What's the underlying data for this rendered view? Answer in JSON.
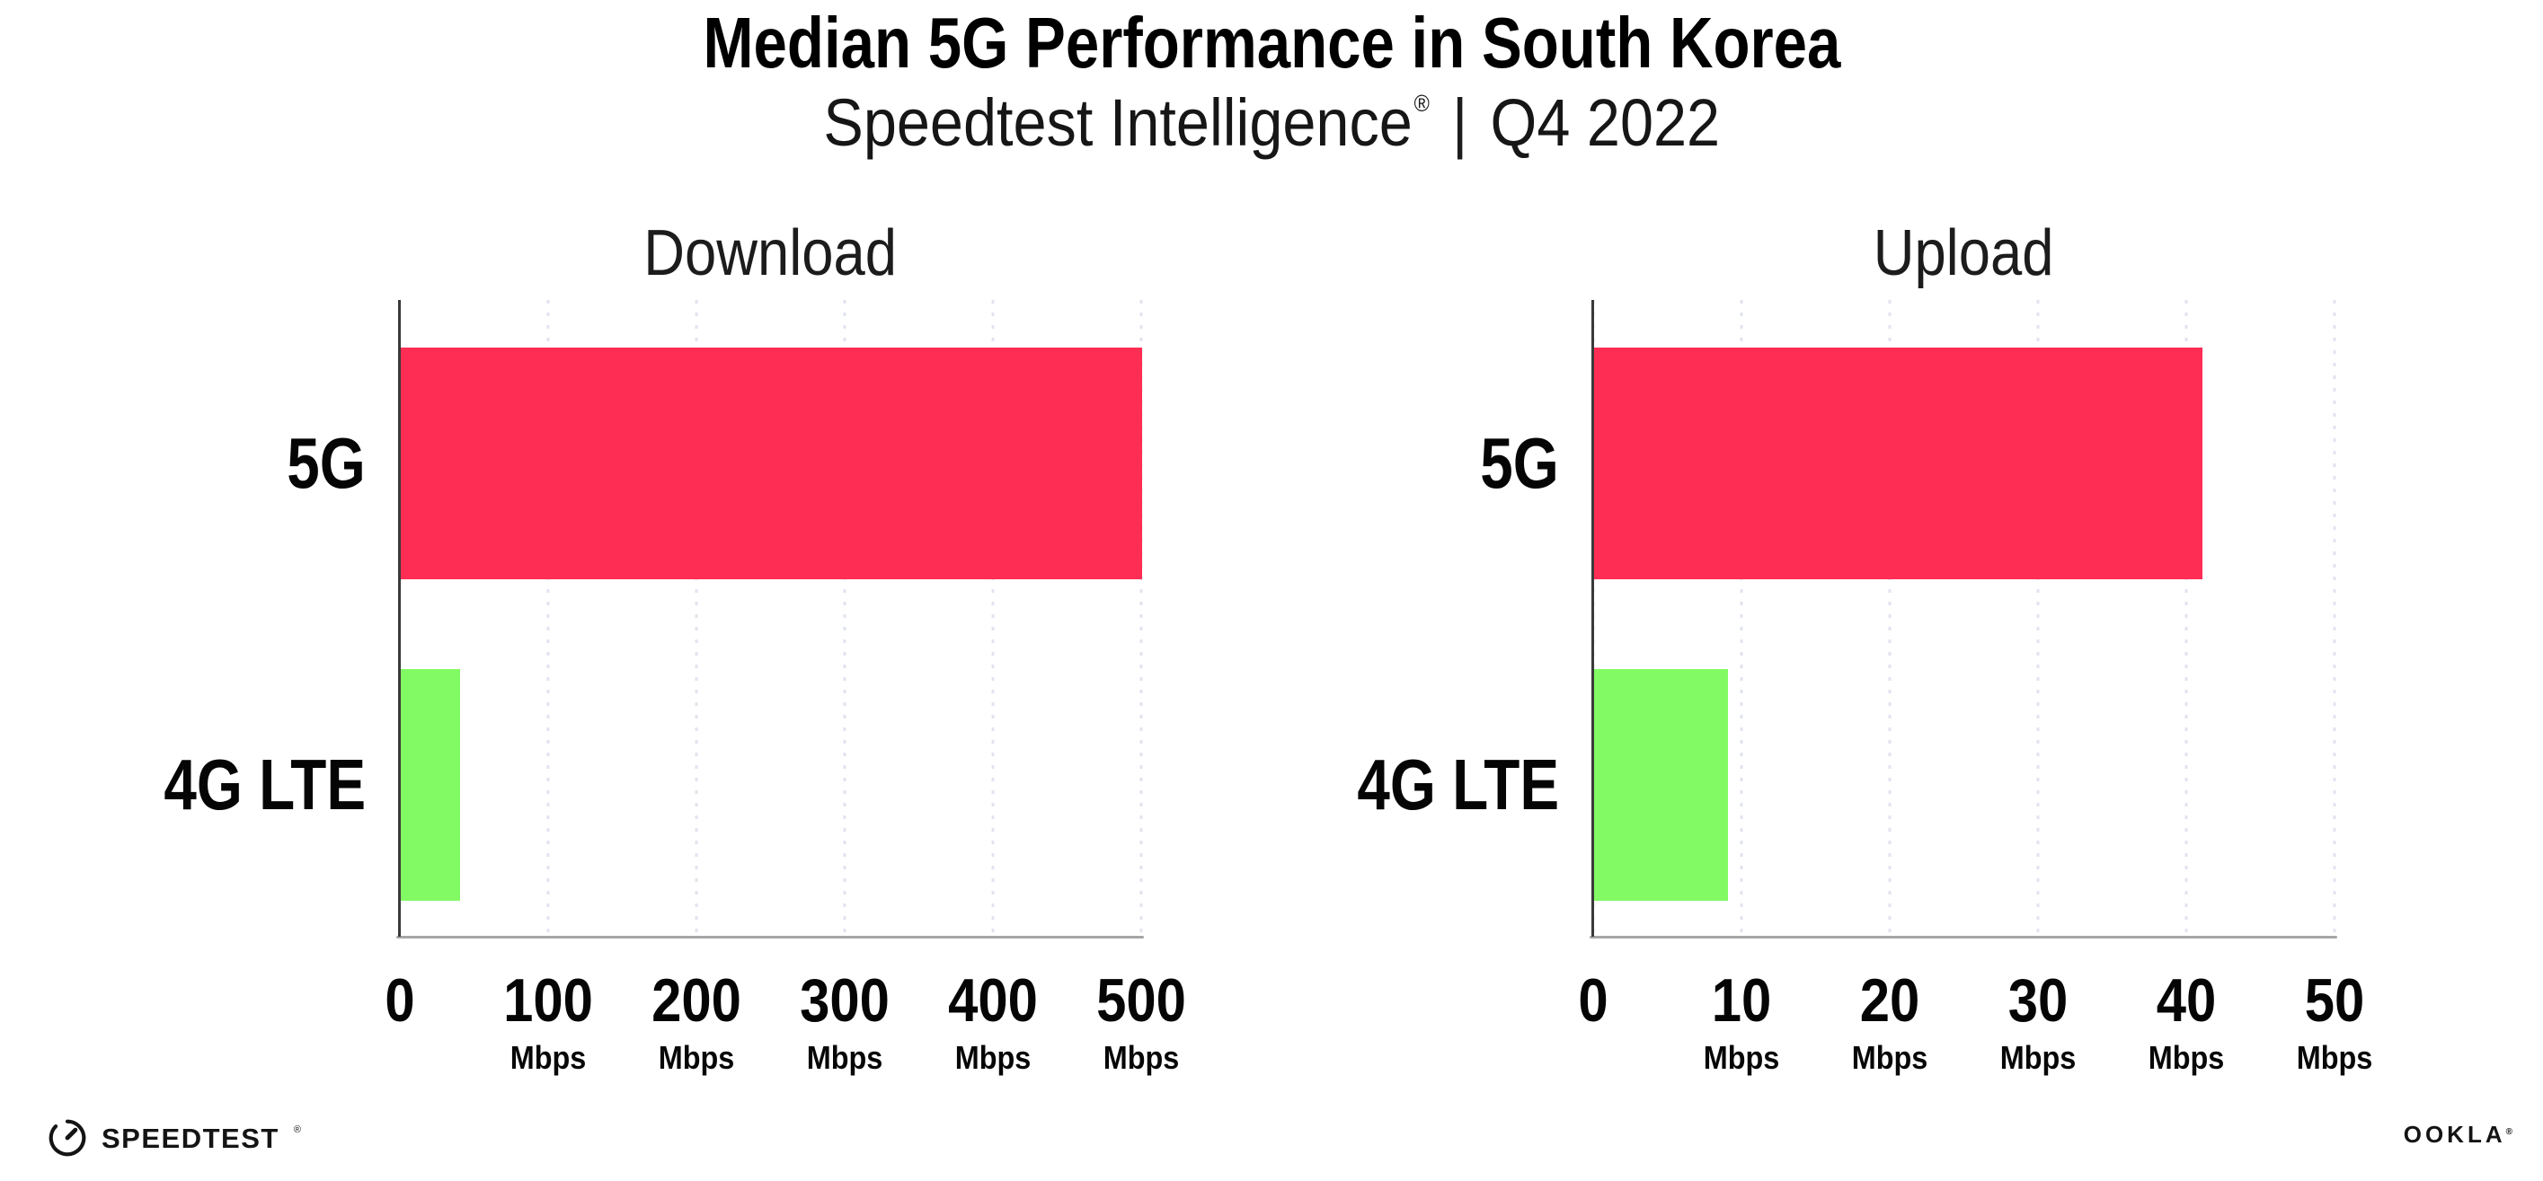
{
  "header": {
    "title": "Median 5G Performance in South Korea",
    "subtitle_brand": "Speedtest Intelligence",
    "subtitle_mark": "®",
    "subtitle_separator": "|",
    "subtitle_period": "Q4 2022"
  },
  "chart_data": [
    {
      "type": "bar",
      "orientation": "horizontal",
      "title": "Download",
      "categories": [
        "5G",
        "4G LTE"
      ],
      "values": [
        500,
        40
      ],
      "unit": "Mbps",
      "xlim": [
        0,
        500
      ],
      "ticks": [
        0,
        100,
        200,
        300,
        400,
        500
      ],
      "bar_colors": [
        "#FD2D54",
        "#82FA64"
      ],
      "grid": "dotted-vertical",
      "legend": "none"
    },
    {
      "type": "bar",
      "orientation": "horizontal",
      "title": "Upload",
      "categories": [
        "5G",
        "4G LTE"
      ],
      "values": [
        41,
        9
      ],
      "unit": "Mbps",
      "xlim": [
        0,
        50
      ],
      "ticks": [
        0,
        10,
        20,
        30,
        40,
        50
      ],
      "bar_colors": [
        "#FD2D54",
        "#82FA64"
      ],
      "grid": "dotted-vertical",
      "legend": "none"
    }
  ],
  "footer": {
    "speedtest_label": "SPEEDTEST",
    "speedtest_mark": "®",
    "ookla_label": "OOKLA",
    "ookla_mark": "®"
  },
  "colors": {
    "bar_5g": "#FD2D54",
    "bar_4g_lte": "#82FA64",
    "gridline": "#E1E4EF",
    "x_axis": "#A6A6A6",
    "y_axis": "#3A3A3A",
    "text": "#0A0A0A"
  }
}
